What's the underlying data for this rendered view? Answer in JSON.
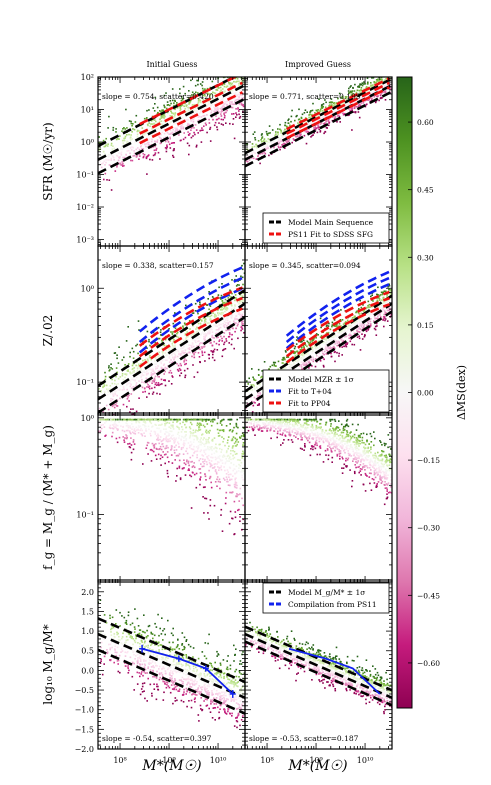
{
  "chart_data": {
    "type": "scatter",
    "columns": [
      "Initial Guess",
      "Improved Guess"
    ],
    "x_ticks": [
      "10⁸",
      "10⁹",
      "10¹⁰"
    ],
    "x_tick_values": [
      8,
      9,
      10
    ],
    "xlim_log10": [
      7.55,
      10.55
    ],
    "xlabel": "M*(M☉)",
    "rows": [
      {
        "ylabel": "SFR (M☉/yr)",
        "scale": "log",
        "ylim_log10": [
          -3.2,
          2.0
        ],
        "y_ticks": [
          "10⁻³",
          "10⁻²",
          "10⁻¹",
          "10⁰",
          "10¹",
          "10²"
        ],
        "y_tick_values": [
          -3,
          -2,
          -1,
          0,
          1,
          2
        ],
        "annotations": [
          "slope = 0.754, scatter=0.420",
          "slope = 0.771, scatter=0.199"
        ],
        "legend": [
          {
            "label": "Model Main Sequence",
            "color": "#000000"
          },
          {
            "label": "PS11 Fit to SDSS SFG",
            "color": "#ee1111"
          }
        ],
        "cloud": {
          "intercept": [
            -6.2,
            -6.2
          ],
          "slope": [
            0.75,
            0.77
          ],
          "scatter": [
            0.42,
            0.2
          ]
        },
        "model": {
          "intercept": -6.32,
          "slope": 0.765
        },
        "fit": {
          "intercept": -6.0,
          "slope": 0.745,
          "color": "#ee1111"
        }
      },
      {
        "ylabel": "Z/.02",
        "scale": "log",
        "ylim_log10": [
          -1.35,
          0.45
        ],
        "y_ticks": [
          "10⁻¹",
          "10⁰"
        ],
        "y_tick_values": [
          -1,
          0
        ],
        "annotations": [
          "slope = 0.338, scatter=0.157",
          "slope = 0.345, scatter=0.094"
        ],
        "legend": [
          {
            "label": "Model MZR ± 1σ",
            "color": "#000000"
          },
          {
            "label": "Fit to T+04",
            "color": "#1122ee"
          },
          {
            "label": "Fit to PP04",
            "color": "#ee1111"
          }
        ],
        "cloud": {
          "intercept": [
            -3.75,
            -3.75
          ],
          "slope": [
            0.34,
            0.345
          ],
          "scatter": [
            0.16,
            0.094
          ]
        },
        "model": {
          "intercept": -3.75,
          "slope": 0.34
        },
        "fit": {
          "intercept": -3.2,
          "slope": 0.32,
          "color": "#1122ee"
        },
        "fit2": {
          "intercept": -3.1,
          "slope": 0.29,
          "color": "#ee1111"
        }
      },
      {
        "ylabel": "f_g = M_g / (M* + M_g)",
        "scale": "log",
        "ylim_log10": [
          -1.7,
          0.05
        ],
        "y_ticks": [
          "10⁻¹",
          "10⁰"
        ],
        "y_tick_values": [
          -1,
          0
        ],
        "annotations": [
          "",
          ""
        ],
        "legend": [],
        "cloud": {
          "intercept": [
            0,
            0
          ],
          "slope": [
            0,
            0
          ],
          "scatter": [
            0.3,
            0.15
          ]
        }
      },
      {
        "ylabel": "log₁₀ M_g/M*",
        "scale": "linear",
        "ylim": [
          -2.0,
          2.3
        ],
        "y_ticks": [
          "−2.0",
          "−1.5",
          "−1.0",
          "−0.5",
          "0.0",
          "0.5",
          "1.0",
          "1.5",
          "2.0"
        ],
        "y_tick_values": [
          -2.0,
          -1.5,
          -1.0,
          -0.5,
          0.0,
          0.5,
          1.0,
          1.5,
          2.0
        ],
        "annotations": [
          "slope = -0.54, scatter=0.397",
          "slope = -0.53, scatter=0.187"
        ],
        "legend": [
          {
            "label": "Model M_g/M* ± 1σ",
            "color": "#000000"
          },
          {
            "label": "Compilation from PS11",
            "color": "#1122ee"
          }
        ],
        "cloud": {
          "intercept": [
            5.0,
            4.95
          ],
          "slope": [
            -0.54,
            -0.53
          ],
          "scatter": [
            0.4,
            0.19
          ]
        },
        "model": {
          "intercept": 5.0,
          "slope": -0.54
        },
        "ps11_points": [
          {
            "x": 8.45,
            "y": 0.55,
            "err": 0.1
          },
          {
            "x": 9.2,
            "y": 0.3,
            "err": 0.08
          },
          {
            "x": 9.75,
            "y": 0.05,
            "err": 0.08
          },
          {
            "x": 10.3,
            "y": -0.6,
            "err": 0.1
          }
        ]
      }
    ],
    "colorbar": {
      "label": "ΔMS(dex)",
      "range": [
        -0.7,
        0.7
      ],
      "ticks": [
        "0.60",
        "0.45",
        "0.30",
        "0.15",
        "0.00",
        "−0.15",
        "−0.30",
        "−0.45",
        "−0.60"
      ],
      "tick_values": [
        0.6,
        0.45,
        0.3,
        0.15,
        0.0,
        -0.15,
        -0.3,
        -0.45,
        -0.6
      ],
      "colors": [
        "#8e0152",
        "#c51b7d",
        "#de77ae",
        "#f1b6da",
        "#fde0ef",
        "#f7f7f7",
        "#e6f5d0",
        "#b8e186",
        "#7fbc41",
        "#4d9221",
        "#276419"
      ]
    }
  }
}
